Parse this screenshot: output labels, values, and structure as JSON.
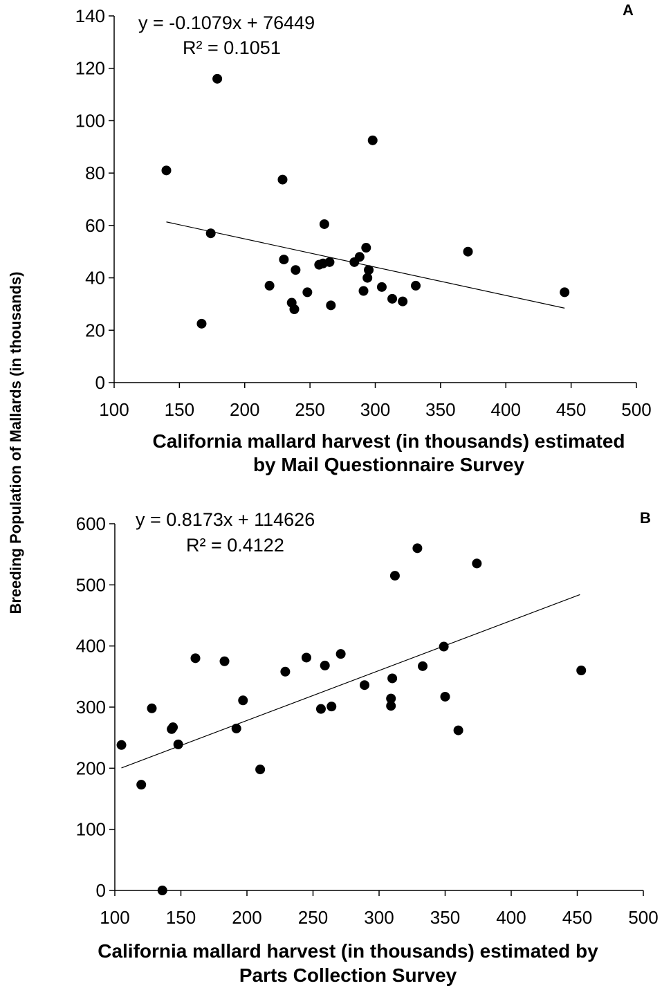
{
  "y_axis_label": "Breeding Population of Mallards (in thousands)",
  "chart_data": [
    {
      "type": "scatter",
      "panel_label": "A",
      "equation": "y = -0.1079x + 76449",
      "r_squared": "R² = 0.1051",
      "xlabel_lines": [
        "California mallard harvest (in thousands) estimated",
        "by Mail Questionnaire Survey"
      ],
      "xlim": [
        100,
        500
      ],
      "ylim": [
        0,
        140
      ],
      "x_ticks": [
        "100",
        "150",
        "200",
        "250",
        "300",
        "350",
        "400",
        "450",
        "500"
      ],
      "y_ticks": [
        "0",
        "20",
        "40",
        "60",
        "80",
        "100",
        "120",
        "140"
      ],
      "trendline": {
        "slope": -0.1079,
        "intercept": 76.449,
        "x_range": [
          140,
          445
        ]
      },
      "points": [
        {
          "x": 140,
          "y": 81
        },
        {
          "x": 167,
          "y": 22.5
        },
        {
          "x": 174,
          "y": 57
        },
        {
          "x": 179,
          "y": 116
        },
        {
          "x": 219,
          "y": 37
        },
        {
          "x": 229,
          "y": 77.5
        },
        {
          "x": 230,
          "y": 47
        },
        {
          "x": 236,
          "y": 30.5
        },
        {
          "x": 238,
          "y": 28
        },
        {
          "x": 239,
          "y": 43
        },
        {
          "x": 248,
          "y": 34.5
        },
        {
          "x": 257,
          "y": 45
        },
        {
          "x": 260,
          "y": 45.5
        },
        {
          "x": 261,
          "y": 60.5
        },
        {
          "x": 265,
          "y": 46
        },
        {
          "x": 266,
          "y": 29.5
        },
        {
          "x": 284,
          "y": 46
        },
        {
          "x": 288,
          "y": 48
        },
        {
          "x": 291,
          "y": 35
        },
        {
          "x": 293,
          "y": 51.5
        },
        {
          "x": 294,
          "y": 40
        },
        {
          "x": 295,
          "y": 43
        },
        {
          "x": 298,
          "y": 92.5
        },
        {
          "x": 305,
          "y": 36.5
        },
        {
          "x": 313,
          "y": 32
        },
        {
          "x": 321,
          "y": 31
        },
        {
          "x": 331,
          "y": 37
        },
        {
          "x": 371,
          "y": 50
        },
        {
          "x": 445,
          "y": 34.5
        }
      ]
    },
    {
      "type": "scatter",
      "panel_label": "B",
      "equation": "y = 0.8173x + 114626",
      "r_squared": "R² = 0.4122",
      "xlabel_lines": [
        "California mallard harvest (in thousands) estimated by",
        "Parts Collection Survey"
      ],
      "xlim": [
        100,
        500
      ],
      "ylim": [
        0,
        600
      ],
      "x_ticks": [
        "100",
        "150",
        "200",
        "250",
        "300",
        "350",
        "400",
        "450",
        "500"
      ],
      "y_ticks": [
        "0",
        "100",
        "200",
        "300",
        "400",
        "500",
        "600"
      ],
      "trendline": {
        "slope": 0.8173,
        "intercept": 114.626,
        "x_range": [
          105,
          452
        ]
      },
      "points": [
        {
          "x": 105,
          "y": 238
        },
        {
          "x": 120,
          "y": 173
        },
        {
          "x": 128,
          "y": 298
        },
        {
          "x": 136,
          "y": 0
        },
        {
          "x": 143,
          "y": 264
        },
        {
          "x": 144,
          "y": 267
        },
        {
          "x": 148,
          "y": 239
        },
        {
          "x": 161,
          "y": 380
        },
        {
          "x": 183,
          "y": 375
        },
        {
          "x": 192,
          "y": 265
        },
        {
          "x": 197,
          "y": 311
        },
        {
          "x": 210,
          "y": 198
        },
        {
          "x": 229,
          "y": 358
        },
        {
          "x": 245,
          "y": 381
        },
        {
          "x": 256,
          "y": 297
        },
        {
          "x": 259,
          "y": 368
        },
        {
          "x": 264,
          "y": 301
        },
        {
          "x": 271,
          "y": 387
        },
        {
          "x": 289,
          "y": 336
        },
        {
          "x": 309,
          "y": 314
        },
        {
          "x": 309,
          "y": 302
        },
        {
          "x": 310,
          "y": 347
        },
        {
          "x": 312,
          "y": 515
        },
        {
          "x": 329,
          "y": 560
        },
        {
          "x": 333,
          "y": 367
        },
        {
          "x": 349,
          "y": 399
        },
        {
          "x": 350,
          "y": 317
        },
        {
          "x": 360,
          "y": 262
        },
        {
          "x": 374,
          "y": 535
        },
        {
          "x": 453,
          "y": 360
        }
      ]
    }
  ]
}
